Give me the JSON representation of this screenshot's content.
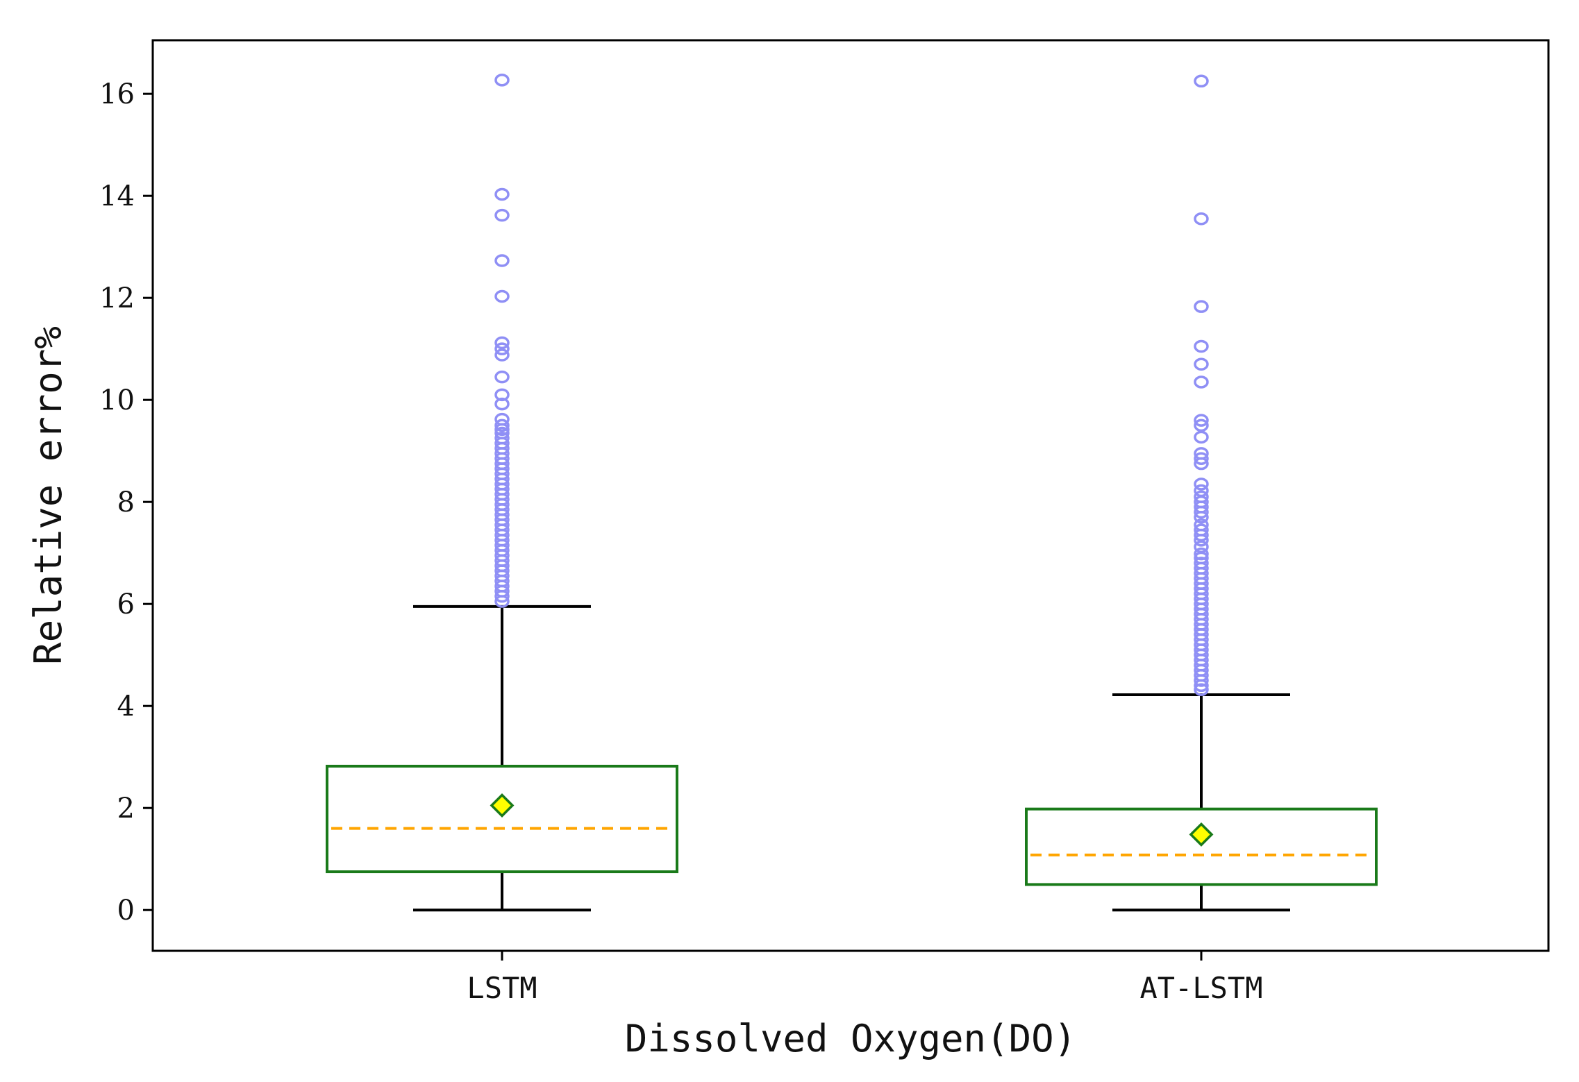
{
  "chart_data": {
    "type": "box",
    "xlabel": "Dissolved Oxygen(DO)",
    "ylabel": "Relative error%",
    "ylim": [
      -0.8,
      17.05
    ],
    "yticks": [
      0,
      2,
      4,
      6,
      8,
      10,
      12,
      14,
      16
    ],
    "categories": [
      "LSTM",
      "AT-LSTM"
    ],
    "grid": false,
    "legend": "none",
    "colors": {
      "box": "#1a7a1a",
      "median": "#ffa500",
      "mean_fill": "#ffff00",
      "mean_edge": "#1a7a1a",
      "whisker": "#000000",
      "outlier": "#8f8ff5"
    },
    "boxes": [
      {
        "name": "LSTM",
        "whisker_low": 0,
        "q1": 0.75,
        "median": 1.6,
        "q3": 2.82,
        "whisker_high": 5.95,
        "mean": 2.05,
        "outliers": [
          16.27,
          14.03,
          13.62,
          12.73,
          12.03,
          11.12,
          11.0,
          10.88,
          10.45,
          10.1,
          9.92,
          9.62,
          9.5,
          9.42,
          9.35,
          9.25,
          9.15,
          9.05,
          8.95,
          8.85,
          8.75,
          8.65,
          8.55,
          8.45,
          8.35,
          8.25,
          8.15,
          8.05,
          7.95,
          7.85,
          7.75,
          7.65,
          7.55,
          7.45,
          7.35,
          7.25,
          7.15,
          7.05,
          6.95,
          6.85,
          6.75,
          6.65,
          6.55,
          6.45,
          6.35,
          6.25,
          6.15,
          6.05
        ]
      },
      {
        "name": "AT-LSTM",
        "whisker_low": 0,
        "q1": 0.5,
        "median": 1.08,
        "q3": 1.98,
        "whisker_high": 4.22,
        "mean": 1.48,
        "outliers": [
          16.25,
          13.55,
          11.83,
          11.05,
          10.7,
          10.35,
          9.6,
          9.5,
          9.27,
          8.95,
          8.85,
          8.75,
          8.35,
          8.22,
          8.1,
          8.0,
          7.9,
          7.8,
          7.7,
          7.55,
          7.45,
          7.35,
          7.25,
          7.12,
          6.98,
          6.9,
          6.8,
          6.7,
          6.6,
          6.5,
          6.4,
          6.3,
          6.2,
          6.1,
          6.0,
          5.9,
          5.8,
          5.7,
          5.6,
          5.5,
          5.4,
          5.3,
          5.2,
          5.1,
          5.0,
          4.9,
          4.8,
          4.7,
          4.6,
          4.5,
          4.4,
          4.32
        ]
      }
    ]
  }
}
